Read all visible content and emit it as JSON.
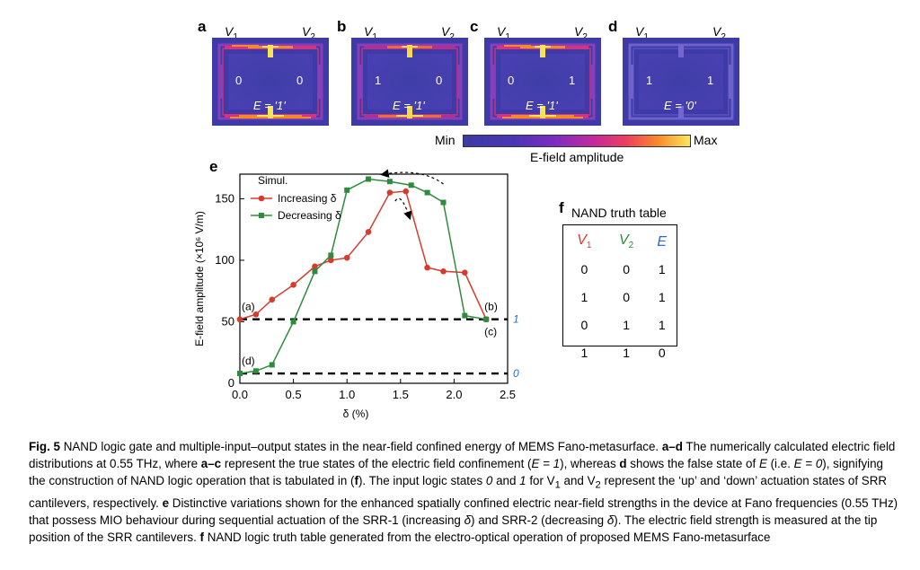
{
  "panels_top": [
    {
      "letter": "a",
      "v1": "V",
      "v2": "V",
      "left_state": "0",
      "right_state": "0",
      "e_state": "E = '1'",
      "glow": "strong"
    },
    {
      "letter": "b",
      "v1": "V",
      "v2": "V",
      "left_state": "1",
      "right_state": "0",
      "e_state": "E = '1'",
      "glow": "medium"
    },
    {
      "letter": "c",
      "v1": "V",
      "v2": "V",
      "left_state": "0",
      "right_state": "1",
      "e_state": "E = '1'",
      "glow": "strong"
    },
    {
      "letter": "d",
      "v1": "V",
      "v2": "V",
      "left_state": "1",
      "right_state": "1",
      "e_state": "E = '0'",
      "glow": "none"
    }
  ],
  "subscripts": {
    "one": "1",
    "two": "2"
  },
  "colorbar": {
    "min": "Min",
    "max": "Max",
    "label": "E-field amplitude"
  },
  "chart_data": {
    "panel_letter": "e",
    "type": "line",
    "xlabel": "δ (%)",
    "ylabel": "E-field amplitude (×10⁶ V/m)",
    "xlim": [
      0,
      2.5
    ],
    "ylim": [
      0,
      170
    ],
    "xticks": [
      0.0,
      0.5,
      1.0,
      1.5,
      2.0,
      2.5
    ],
    "xtick_labels": [
      "0.0",
      "0.5",
      "1.0",
      "1.5",
      "2.0",
      "2.5"
    ],
    "yticks": [
      0,
      50,
      100,
      150
    ],
    "ytick_labels": [
      "0",
      "50",
      "100",
      "150"
    ],
    "legend_title": "Simul.",
    "legend_placement": "top-left",
    "series": [
      {
        "name": "Increasing δ",
        "color": "#d73b2e",
        "marker": "circle",
        "x": [
          0.0,
          0.15,
          0.3,
          0.5,
          0.7,
          0.85,
          1.0,
          1.2,
          1.4,
          1.55,
          1.75,
          1.9,
          2.1,
          2.3
        ],
        "y": [
          52,
          56,
          68,
          80,
          95,
          100,
          102,
          123,
          155,
          156,
          94,
          91,
          90,
          52
        ]
      },
      {
        "name": "Decreasing δ",
        "color": "#2e8b3e",
        "marker": "square",
        "x": [
          0.0,
          0.15,
          0.3,
          0.5,
          0.7,
          0.85,
          1.0,
          1.2,
          1.4,
          1.6,
          1.75,
          1.9,
          2.1,
          2.3
        ],
        "y": [
          8,
          10,
          15,
          50,
          91,
          104,
          157,
          166,
          164,
          161,
          155,
          147,
          55,
          52
        ]
      }
    ],
    "reference_lines": [
      {
        "y": 52,
        "label": "1",
        "color": "#2a6fc4"
      },
      {
        "y": 8,
        "label": "0",
        "color": "#2a6fc4"
      }
    ],
    "point_annotations": [
      {
        "label": "(a)",
        "x": 0.0,
        "y": 52
      },
      {
        "label": "(b)",
        "x": 2.3,
        "y": 52
      },
      {
        "label": "(c)",
        "x": 2.3,
        "y": 52
      },
      {
        "label": "(d)",
        "x": 0.0,
        "y": 8
      }
    ]
  },
  "truth_table": {
    "panel_letter": "f",
    "title": "NAND truth table",
    "headers": [
      {
        "main": "V",
        "sub": "1",
        "color": "#d73b2e"
      },
      {
        "main": "V",
        "sub": "2",
        "color": "#2e8b3e"
      },
      {
        "main": "E",
        "sub": "",
        "color": "#2a6fc4"
      }
    ],
    "rows": [
      [
        "0",
        "0",
        "1"
      ],
      [
        "1",
        "0",
        "1"
      ],
      [
        "0",
        "1",
        "1"
      ],
      [
        "1",
        "1",
        "0"
      ]
    ]
  },
  "caption": {
    "fig_label": "Fig. 5",
    "s1": " NAND logic gate and multiple-input–output states in the near-field confined energy of MEMS Fano-metasurface. ",
    "ad": "a–d",
    "s2": " The numerically calculated electric field distributions at 0.55 THz, where ",
    "ac": "a–c",
    "s3": " represent the true states of the electric field confinement (",
    "e1": "E = 1",
    "s4": "), whereas ",
    "d": "d",
    "s5": " shows the false state of ",
    "Evar": "E",
    "s6": " (i.e. ",
    "e0": "E = 0",
    "s7": "), signifying the construction of NAND logic operation that is tabulated in (",
    "f1": "f",
    "s8": "). The input logic states ",
    "zero": "0",
    "s9": " and ",
    "one": "1",
    "s10": " for V",
    "sub1": "1",
    "s11": " and V",
    "sub2": "2",
    "s12": " represent the ‘up’ and ‘down’ actuation states of SRR cantilevers, respectively. ",
    "e": "e",
    "s13": " Distinctive variations shown for the enhanced spatially confined electric near-field strengths in the device at Fano frequencies (0.55 THz) that possess MIO behaviour during sequential actuation of the SRR-1 (increasing ",
    "delta1": "δ",
    "s14": ") and SRR-2 (decreasing ",
    "delta2": "δ",
    "s15": "). The electric field strength is measured at the tip position of the SRR cantilevers. ",
    "f2": "f",
    "s16": " NAND logic truth table generated from the electro-optical operation of proposed MEMS Fano-metasurface"
  }
}
